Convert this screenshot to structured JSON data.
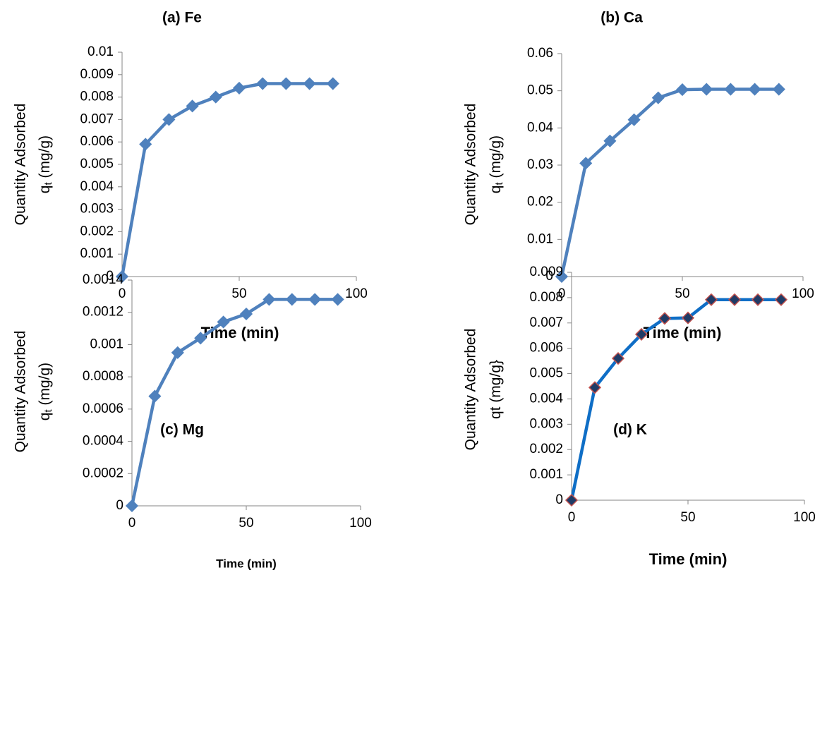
{
  "chart_data": [
    {
      "type": "line",
      "title": "(a) Fe",
      "xlabel": "Time (min)",
      "ylabel_line1": "Quantity Adsorbed",
      "ylabel_main": "q",
      "ylabel_sub": "t",
      "ylabel_rest": " (mg/g)",
      "x": [
        0,
        10,
        20,
        30,
        40,
        50,
        60,
        70,
        80,
        90
      ],
      "series": [
        {
          "values": [
            0,
            0.0059,
            0.007,
            0.0076,
            0.008,
            0.0084,
            0.0086,
            0.0086,
            0.0086,
            0.0086
          ]
        }
      ],
      "xlim": [
        0,
        100
      ],
      "ylim": [
        0,
        0.01
      ],
      "xticks": [
        0,
        50,
        100
      ],
      "yticks": [
        0,
        0.001,
        0.002,
        0.003,
        0.004,
        0.005,
        0.006,
        0.007,
        0.008,
        0.009,
        0.01
      ],
      "ytick_labels": [
        "0",
        "0.001",
        "0.002",
        "0.003",
        "0.004",
        "0.005",
        "0.006",
        "0.007",
        "0.008",
        "0.009",
        "0.01"
      ],
      "line_color": "#4F81BD",
      "marker": "diamond",
      "marker_fill": "#4F81BD",
      "marker_stroke": "#4F81BD",
      "grid": false,
      "legend": "none"
    },
    {
      "type": "line",
      "title": "(b) Ca",
      "xlabel": "Time (min)",
      "ylabel_line1": "Quantity Adsorbed",
      "ylabel_main": "q",
      "ylabel_sub": "t",
      "ylabel_rest": " (mg/g)",
      "x": [
        0,
        10,
        20,
        30,
        40,
        50,
        60,
        70,
        80,
        90
      ],
      "series": [
        {
          "values": [
            0,
            0.0305,
            0.0365,
            0.0422,
            0.0481,
            0.0503,
            0.0504,
            0.0504,
            0.0504,
            0.0504
          ]
        }
      ],
      "xlim": [
        0,
        100
      ],
      "ylim": [
        0,
        0.06
      ],
      "xticks": [
        0,
        50,
        100
      ],
      "yticks": [
        0,
        0.01,
        0.02,
        0.03,
        0.04,
        0.05,
        0.06
      ],
      "ytick_labels": [
        "0",
        "0.01",
        "0.02",
        "0.03",
        "0.04",
        "0.05",
        "0.06"
      ],
      "line_color": "#4F81BD",
      "marker": "diamond",
      "marker_fill": "#4F81BD",
      "marker_stroke": "#4F81BD",
      "grid": false,
      "legend": "none"
    },
    {
      "type": "line",
      "title": "(c) Mg",
      "xlabel": "Time (min)",
      "ylabel_line1": "Quantity Adsorbed",
      "ylabel_main": "q",
      "ylabel_sub": "t",
      "ylabel_rest": " (mg/g)",
      "x": [
        0,
        10,
        20,
        30,
        40,
        50,
        60,
        70,
        80,
        90
      ],
      "series": [
        {
          "values": [
            0,
            0.00068,
            0.00095,
            0.00104,
            0.00114,
            0.00119,
            0.00128,
            0.00128,
            0.00128,
            0.00128
          ]
        }
      ],
      "xlim": [
        0,
        100
      ],
      "ylim": [
        0,
        0.0014
      ],
      "xticks": [
        0,
        50,
        100
      ],
      "yticks": [
        0,
        0.0002,
        0.0004,
        0.0006,
        0.0008,
        0.001,
        0.0012,
        0.0014
      ],
      "ytick_labels": [
        "0",
        "0.0002",
        "0.0004",
        "0.0006",
        "0.0008",
        "0.001",
        "0.0012",
        "0.0014"
      ],
      "line_color": "#4F81BD",
      "marker": "diamond",
      "marker_fill": "#4F81BD",
      "marker_stroke": "#4F81BD",
      "grid": false,
      "legend": "none"
    },
    {
      "type": "line",
      "title": "(d) K",
      "xlabel": "Time (min)",
      "ylabel_line1": "Quantity Adsorbed",
      "ylabel_main": "qt",
      "ylabel_sub": "",
      "ylabel_rest": " (mg/g}",
      "x": [
        0,
        10,
        20,
        30,
        40,
        50,
        60,
        70,
        80,
        90
      ],
      "series": [
        {
          "values": [
            0,
            0.00445,
            0.0056,
            0.00655,
            0.00718,
            0.0072,
            0.00792,
            0.00792,
            0.00792,
            0.00792
          ]
        }
      ],
      "xlim": [
        0,
        100
      ],
      "ylim": [
        0,
        0.009
      ],
      "xticks": [
        0,
        50,
        100
      ],
      "yticks": [
        0,
        0.001,
        0.002,
        0.003,
        0.004,
        0.005,
        0.006,
        0.007,
        0.008,
        0.009
      ],
      "ytick_labels": [
        "0",
        "0.001",
        "0.002",
        "0.003",
        "0.004",
        "0.005",
        "0.006",
        "0.007",
        "0.008",
        "0.009"
      ],
      "line_color": "#0F6EC6",
      "marker": "diamond",
      "marker_fill": "#1F3B66",
      "marker_stroke": "#C0504D",
      "grid": false,
      "legend": "none"
    }
  ]
}
